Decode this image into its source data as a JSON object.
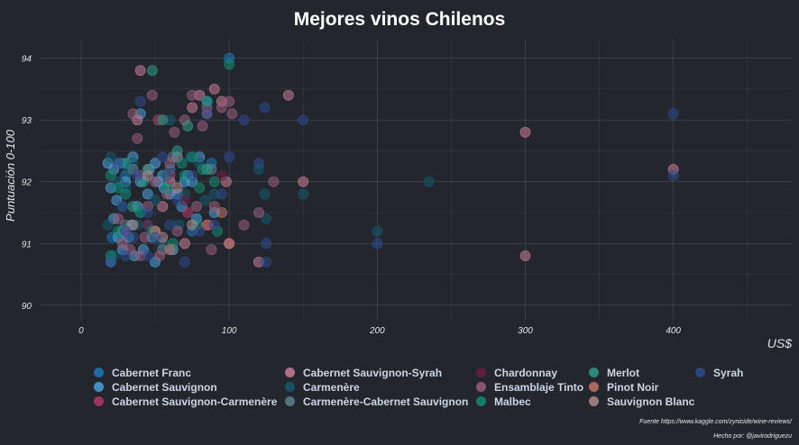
{
  "chart_data": {
    "type": "scatter",
    "title": "Mejores vinos Chilenos",
    "xlabel": "US$",
    "ylabel": "Puntuación 0-100",
    "xlim": [
      -28,
      480
    ],
    "ylim": [
      89.75,
      94.3
    ],
    "xticks": [
      0,
      100,
      200,
      300,
      400
    ],
    "yticks": [
      90,
      91,
      92,
      93,
      94
    ],
    "grid": true,
    "legend_position": "bottom",
    "point_opacity": 0.55,
    "series": [
      {
        "name": "Cabernet Franc",
        "color": "#1b78b8",
        "points": [
          [
            21,
            91.1
          ],
          [
            30,
            92.1
          ],
          [
            45,
            91.3
          ],
          [
            60,
            92.2
          ],
          [
            75,
            91.2
          ],
          [
            88,
            92.3
          ],
          [
            100,
            94
          ]
        ]
      },
      {
        "name": "Cabernet Sauvignon",
        "color": "#4aa3dd",
        "points": [
          [
            18,
            92.3
          ],
          [
            20,
            91.9
          ],
          [
            22,
            92.2
          ],
          [
            25,
            91.1
          ],
          [
            26,
            92.3
          ],
          [
            28,
            90.9
          ],
          [
            30,
            92.3
          ],
          [
            32,
            91.1
          ],
          [
            35,
            92.4
          ],
          [
            36,
            90.8
          ],
          [
            40,
            92
          ],
          [
            45,
            91.8
          ],
          [
            50,
            92.3
          ],
          [
            50,
            90.7
          ],
          [
            55,
            92.1
          ],
          [
            60,
            91.8
          ],
          [
            65,
            91.8
          ],
          [
            70,
            92
          ],
          [
            75,
            92
          ],
          [
            80,
            92.4
          ],
          [
            85,
            93.3
          ],
          [
            90,
            91.5
          ],
          [
            20,
            90.7
          ],
          [
            22,
            91.4
          ],
          [
            24,
            91.7
          ],
          [
            28,
            91.2
          ],
          [
            30,
            92
          ],
          [
            34,
            91.3
          ],
          [
            38,
            91.6
          ],
          [
            40,
            93.1
          ],
          [
            42,
            90.9
          ],
          [
            46,
            92.2
          ],
          [
            48,
            91.1
          ],
          [
            52,
            92
          ],
          [
            56,
            91.9
          ],
          [
            62,
            90.9
          ],
          [
            68,
            91.6
          ],
          [
            72,
            92.1
          ],
          [
            78,
            91.4
          ]
        ]
      },
      {
        "name": "Cabernet Sauvignon-Carmenère",
        "color": "#b03a6a",
        "points": [
          [
            30,
            91.2
          ],
          [
            52,
            93
          ],
          [
            60,
            92.1
          ],
          [
            72,
            91.5
          ],
          [
            86,
            91.3
          ]
        ]
      },
      {
        "name": "Cabernet Sauvignon-Syrah",
        "color": "#c87c98",
        "points": [
          [
            40,
            93.8
          ],
          [
            38,
            93
          ],
          [
            60,
            92
          ],
          [
            80,
            93.4
          ],
          [
            98,
            92
          ],
          [
            120,
            90.7
          ],
          [
            300,
            92.8
          ],
          [
            400,
            92.2
          ],
          [
            300,
            90.8
          ],
          [
            100,
            91
          ],
          [
            50,
            91.2
          ],
          [
            70,
            91
          ],
          [
            90,
            93.5
          ],
          [
            140,
            93.4
          ],
          [
            150,
            92
          ],
          [
            85,
            93.1
          ],
          [
            45,
            92.2
          ],
          [
            55,
            91.6
          ],
          [
            65,
            92.4
          ],
          [
            75,
            93.2
          ],
          [
            95,
            93.3
          ]
        ]
      },
      {
        "name": "Carmenère",
        "color": "#16596d",
        "points": [
          [
            20,
            92.4
          ],
          [
            25,
            92
          ],
          [
            30,
            91.9
          ],
          [
            35,
            92.3
          ],
          [
            40,
            91.5
          ],
          [
            50,
            91.7
          ],
          [
            55,
            91
          ],
          [
            60,
            93
          ],
          [
            70,
            91.8
          ],
          [
            80,
            92.3
          ],
          [
            90,
            91.8
          ],
          [
            120,
            92.2
          ],
          [
            124,
            91.8
          ],
          [
            125,
            91.4
          ],
          [
            150,
            91.8
          ],
          [
            200,
            91.2
          ],
          [
            235,
            92
          ],
          [
            18,
            91.3
          ],
          [
            22,
            90.8
          ],
          [
            28,
            91.6
          ],
          [
            32,
            92.2
          ],
          [
            38,
            91.3
          ],
          [
            42,
            92.1
          ],
          [
            48,
            91.2
          ],
          [
            58,
            92.1
          ],
          [
            66,
            91.3
          ],
          [
            74,
            92.4
          ],
          [
            84,
            91.7
          ]
        ]
      },
      {
        "name": "Carmenère-Cabernet Sauvignon",
        "color": "#5c7f8e",
        "points": [
          [
            35,
            92.2
          ],
          [
            62,
            92.4
          ],
          [
            88,
            92.2
          ],
          [
            30,
            91.3
          ],
          [
            55,
            90.9
          ]
        ]
      },
      {
        "name": "Chardonnay",
        "color": "#6d1f3f",
        "points": [
          [
            45,
            91.3
          ],
          [
            70,
            91.7
          ],
          [
            95,
            92.1
          ]
        ]
      },
      {
        "name": "Ensamblaje Tinto",
        "color": "#9a5d7d",
        "points": [
          [
            40,
            92.1
          ],
          [
            60,
            92.3
          ],
          [
            70,
            93
          ],
          [
            85,
            93.2
          ],
          [
            90,
            91.6
          ],
          [
            100,
            93.3
          ],
          [
            120,
            91.5
          ],
          [
            130,
            92
          ],
          [
            40,
            90.8
          ],
          [
            45,
            91.6
          ],
          [
            50,
            92
          ],
          [
            55,
            93
          ],
          [
            65,
            91.2
          ],
          [
            75,
            93.4
          ],
          [
            95,
            93.2
          ],
          [
            110,
            91.3
          ],
          [
            35,
            93.1
          ],
          [
            38,
            92.7
          ],
          [
            58,
            91.8
          ],
          [
            82,
            92.9
          ],
          [
            102,
            93.1
          ],
          [
            25,
            91.4
          ],
          [
            28,
            91
          ],
          [
            33,
            90.9
          ],
          [
            43,
            91.1
          ],
          [
            48,
            93.4
          ],
          [
            53,
            90.8
          ],
          [
            63,
            92.8
          ],
          [
            78,
            91.6
          ],
          [
            88,
            90.9
          ]
        ]
      },
      {
        "name": "Malbec",
        "color": "#138a72",
        "points": [
          [
            20,
            92.1
          ],
          [
            25,
            91.9
          ],
          [
            30,
            92.3
          ],
          [
            45,
            92.2
          ],
          [
            55,
            93
          ],
          [
            70,
            92.1
          ],
          [
            75,
            92.4
          ],
          [
            80,
            91.9
          ],
          [
            85,
            93.3
          ],
          [
            90,
            92
          ],
          [
            100,
            93.9
          ],
          [
            20,
            90.8
          ],
          [
            25,
            91.2
          ],
          [
            30,
            91.8
          ],
          [
            40,
            91.5
          ],
          [
            48,
            91.2
          ],
          [
            58,
            91.9
          ],
          [
            62,
            91
          ],
          [
            68,
            92.3
          ],
          [
            78,
            91.3
          ],
          [
            82,
            92.2
          ],
          [
            92,
            91.2
          ]
        ]
      },
      {
        "name": "Merlot",
        "color": "#2f9a85",
        "points": [
          [
            42,
            92
          ],
          [
            65,
            92.5
          ],
          [
            85,
            92.2
          ],
          [
            48,
            93.8
          ],
          [
            72,
            92.9
          ],
          [
            35,
            91.6
          ]
        ]
      },
      {
        "name": "Pinot Noir",
        "color": "#c0756a",
        "points": [
          [
            50,
            91.2
          ],
          [
            60,
            90.9
          ],
          [
            85,
            91.3
          ],
          [
            95,
            91.5
          ],
          [
            100,
            91
          ]
        ]
      },
      {
        "name": "Sauvignon Blanc",
        "color": "#b08a8e",
        "points": [
          [
            35,
            91.3
          ],
          [
            55,
            91.1
          ],
          [
            75,
            91.3
          ],
          [
            45,
            92.1
          ],
          [
            65,
            91.9
          ]
        ]
      },
      {
        "name": "Syrah",
        "color": "#2d4a8c",
        "points": [
          [
            20,
            90.7
          ],
          [
            25,
            92.3
          ],
          [
            30,
            91.2
          ],
          [
            35,
            91.1
          ],
          [
            40,
            93.3
          ],
          [
            50,
            91.1
          ],
          [
            55,
            92.4
          ],
          [
            60,
            91.3
          ],
          [
            70,
            90.7
          ],
          [
            80,
            91.2
          ],
          [
            90,
            91.3
          ],
          [
            100,
            92.4
          ],
          [
            120,
            92.3
          ],
          [
            124,
            93.2
          ],
          [
            125,
            91
          ],
          [
            125,
            90.7
          ],
          [
            150,
            93
          ],
          [
            200,
            91
          ],
          [
            400,
            93.1
          ],
          [
            400,
            92.1
          ],
          [
            28,
            91.6
          ],
          [
            38,
            92.1
          ],
          [
            45,
            90.8
          ],
          [
            65,
            91.7
          ],
          [
            75,
            92.1
          ],
          [
            85,
            93.1
          ],
          [
            95,
            91.8
          ],
          [
            110,
            93
          ],
          [
            30,
            90.8
          ],
          [
            45,
            91.5
          ]
        ]
      }
    ]
  },
  "caption": {
    "source": "Fuente https://www.kaggle.com/zynicide/wine-reviews/",
    "author": "Hecho por: @javirodriguezu"
  },
  "colors": {
    "background": "#23262d",
    "gridline": "#4a4e57",
    "tick_text": "#e2e5ea"
  }
}
